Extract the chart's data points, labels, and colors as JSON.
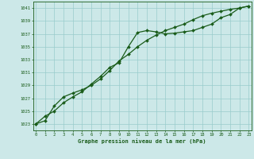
{
  "xlabel": "Graphe pression niveau de la mer (hPa)",
  "bg_color": "#cce8e8",
  "grid_color": "#99cccc",
  "line_color": "#1a5c1a",
  "ylim": [
    1022.0,
    1042.0
  ],
  "xlim": [
    -0.3,
    23.3
  ],
  "yticks": [
    1023,
    1025,
    1027,
    1029,
    1031,
    1033,
    1035,
    1037,
    1039,
    1041
  ],
  "xticks": [
    0,
    1,
    2,
    3,
    4,
    5,
    6,
    7,
    8,
    9,
    10,
    11,
    12,
    13,
    14,
    15,
    16,
    17,
    18,
    19,
    20,
    21,
    22,
    23
  ],
  "series1_x": [
    0,
    1,
    2,
    3,
    4,
    5,
    6,
    7,
    8,
    9,
    10,
    11,
    12,
    13,
    14,
    15,
    16,
    17,
    18,
    19,
    20,
    21,
    22,
    23
  ],
  "series1_y": [
    1023.0,
    1024.2,
    1025.0,
    1026.3,
    1027.2,
    1028.0,
    1029.2,
    1030.4,
    1031.8,
    1032.5,
    1035.0,
    1037.2,
    1037.5,
    1037.3,
    1037.0,
    1037.1,
    1037.3,
    1037.5,
    1038.0,
    1038.5,
    1039.5,
    1040.0,
    1041.0,
    1041.3
  ],
  "series2_x": [
    0,
    1,
    2,
    3,
    4,
    5,
    6,
    7,
    8,
    9,
    10,
    11,
    12,
    13,
    14,
    15,
    16,
    17,
    18,
    19,
    20,
    21,
    22,
    23
  ],
  "series2_y": [
    1023.0,
    1023.5,
    1025.8,
    1027.2,
    1027.8,
    1028.3,
    1029.0,
    1030.0,
    1031.3,
    1032.8,
    1033.8,
    1035.0,
    1036.0,
    1036.8,
    1037.5,
    1038.0,
    1038.5,
    1039.2,
    1039.8,
    1040.2,
    1040.5,
    1040.8,
    1041.0,
    1041.3
  ]
}
